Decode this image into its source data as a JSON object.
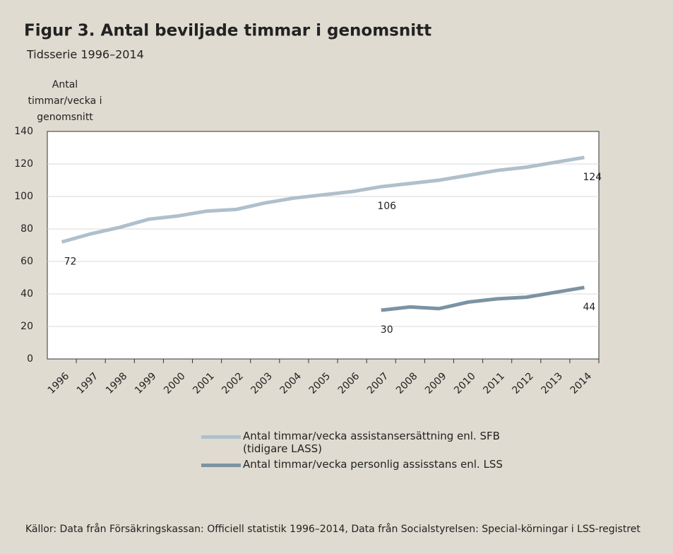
{
  "chart_data": {
    "type": "line",
    "title": "Figur 3. Antal beviljade timmar i genomsnitt",
    "subtitle": "Tidsserie 1996–2014",
    "y_label": [
      "Antal",
      "timmar/vecka  i",
      "genomsnitt"
    ],
    "categories": [
      "1996",
      "1997",
      "1998",
      "1999",
      "2000",
      "2001",
      "2002",
      "2003",
      "2004",
      "2005",
      "2006",
      "2007",
      "2008",
      "2009",
      "2010",
      "2011",
      "2012",
      "2013",
      "2014"
    ],
    "series": [
      {
        "name": "Antal timmar/vecka assistansersättning enl. SFB (tidigare LASS)",
        "color": "#afc0cc",
        "values": [
          72,
          77,
          81,
          86,
          88,
          91,
          92,
          96,
          99,
          101,
          103,
          106,
          108,
          110,
          113,
          116,
          118,
          121,
          124
        ],
        "value_labels": [
          "72",
          null,
          null,
          null,
          null,
          null,
          null,
          null,
          null,
          null,
          null,
          "106",
          null,
          null,
          null,
          null,
          null,
          null,
          "124"
        ]
      },
      {
        "name": "Antal timmar/vecka personlig assisstans enl. LSS",
        "color": "#7b93a3",
        "values": [
          null,
          null,
          null,
          null,
          null,
          null,
          null,
          null,
          null,
          null,
          null,
          30,
          32,
          31,
          35,
          37,
          38,
          41,
          44
        ],
        "value_labels": [
          null,
          null,
          null,
          null,
          null,
          null,
          null,
          null,
          null,
          null,
          null,
          "30",
          null,
          null,
          null,
          null,
          null,
          null,
          "44"
        ]
      }
    ],
    "ylim": [
      0,
      140
    ],
    "yticks": [
      0,
      20,
      40,
      60,
      80,
      100,
      120,
      140
    ],
    "grid": true,
    "source": "Källor: Data från Försäkringskassan: Officiell statistik 1996–2014, Data från Socialstyrelsen: Special-körningar i LSS-registret"
  }
}
